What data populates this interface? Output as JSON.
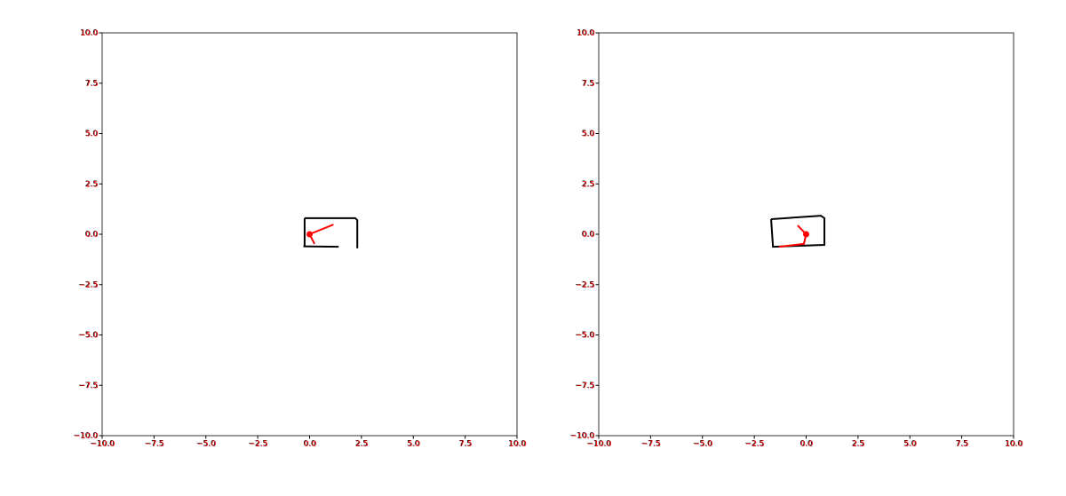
{
  "chart_data": [
    {
      "type": "line",
      "xlim": [
        -10,
        10
      ],
      "ylim": [
        -10,
        10
      ],
      "xticks": [
        {
          "value": -10,
          "label": "−10.0"
        },
        {
          "value": -7.5,
          "label": "−7.5"
        },
        {
          "value": -5,
          "label": "−5.0"
        },
        {
          "value": -2.5,
          "label": "−2.5"
        },
        {
          "value": 0,
          "label": "0.0"
        },
        {
          "value": 2.5,
          "label": "2.5"
        },
        {
          "value": 5,
          "label": "5.0"
        },
        {
          "value": 7.5,
          "label": "7.5"
        },
        {
          "value": 10,
          "label": "10.0"
        }
      ],
      "yticks": [
        {
          "value": -10,
          "label": "−10.0"
        },
        {
          "value": -7.5,
          "label": "−7.5"
        },
        {
          "value": -5,
          "label": "−5.0"
        },
        {
          "value": -2.5,
          "label": "−2.5"
        },
        {
          "value": 0,
          "label": "0.0"
        },
        {
          "value": 2.5,
          "label": "2.5"
        },
        {
          "value": 5,
          "label": "5.0"
        },
        {
          "value": 7.5,
          "label": "7.5"
        },
        {
          "value": 10,
          "label": "10.0"
        }
      ],
      "tick_label_colors": [
        "#000000",
        "#ff0000"
      ],
      "series": [
        {
          "color": "#000000",
          "style": "line",
          "x": [
            -0.24,
            2.2,
            2.3,
            2.3,
            null,
            1.4,
            -0.3,
            null,
            -0.24,
            -0.24
          ],
          "y": [
            0.8,
            0.8,
            0.7,
            -0.7,
            null,
            -0.62,
            -0.6,
            null,
            -0.65,
            0.8
          ]
        },
        {
          "color": "#ff0000",
          "style": "line",
          "x": [
            1.15,
            0,
            0.24
          ],
          "y": [
            0.48,
            0,
            -0.48
          ]
        },
        {
          "color": "#ff0000",
          "style": "scatter",
          "x": [
            0
          ],
          "y": [
            0
          ]
        }
      ]
    },
    {
      "type": "line",
      "xlim": [
        -10,
        10
      ],
      "ylim": [
        -10,
        10
      ],
      "xticks": [
        {
          "value": -10,
          "label": "−10.0"
        },
        {
          "value": -7.5,
          "label": "−7.5"
        },
        {
          "value": -5,
          "label": "−5.0"
        },
        {
          "value": -2.5,
          "label": "−2.5"
        },
        {
          "value": 0,
          "label": "0.0"
        },
        {
          "value": 2.5,
          "label": "2.5"
        },
        {
          "value": 5,
          "label": "5.0"
        },
        {
          "value": 7.5,
          "label": "7.5"
        },
        {
          "value": 10,
          "label": "10.0"
        }
      ],
      "yticks": [
        {
          "value": -10,
          "label": "−10.0"
        },
        {
          "value": -7.5,
          "label": "−7.5"
        },
        {
          "value": -5,
          "label": "−5.0"
        },
        {
          "value": -2.5,
          "label": "−2.5"
        },
        {
          "value": 0,
          "label": "0.0"
        },
        {
          "value": 2.5,
          "label": "2.5"
        },
        {
          "value": 5,
          "label": "5.0"
        },
        {
          "value": 7.5,
          "label": "7.5"
        },
        {
          "value": 10,
          "label": "10.0"
        }
      ],
      "tick_label_colors": [
        "#000000",
        "#ff0000"
      ],
      "series": [
        {
          "color": "#000000",
          "style": "line",
          "x": [
            -1.69,
            0.71,
            0.88,
            0.88,
            null,
            0.88,
            -1.6,
            -1.69
          ],
          "y": [
            0.75,
            0.92,
            0.8,
            -0.57,
            null,
            -0.53,
            -0.62,
            0.75
          ]
        },
        {
          "color": "#ff0000",
          "style": "line",
          "x": [
            -0.41,
            0,
            -0.11,
            -1.31
          ],
          "y": [
            0.44,
            0,
            -0.48,
            -0.62
          ]
        },
        {
          "color": "#ff0000",
          "style": "scatter",
          "x": [
            0
          ],
          "y": [
            0
          ]
        }
      ]
    }
  ]
}
